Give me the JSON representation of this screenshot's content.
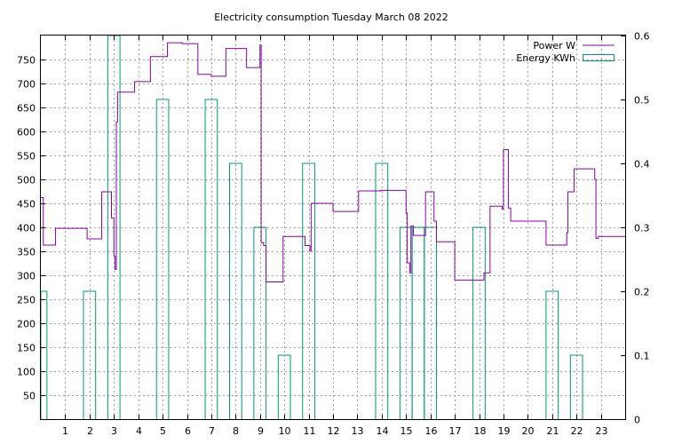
{
  "chart_data": {
    "type": "line",
    "title": "Electricity consumption Tuesday March 08 2022",
    "xlim": [
      0,
      24
    ],
    "ylim": [
      0,
      800
    ],
    "y2lim": [
      0,
      0.6
    ],
    "grid": true,
    "legend_placement": "top-right",
    "x_ticks": [
      1,
      2,
      3,
      4,
      5,
      6,
      7,
      8,
      9,
      10,
      11,
      12,
      13,
      14,
      15,
      16,
      17,
      18,
      19,
      20,
      21,
      22,
      23
    ],
    "y_ticks": [
      50,
      100,
      150,
      200,
      250,
      300,
      350,
      400,
      450,
      500,
      550,
      600,
      650,
      700,
      750
    ],
    "y2_ticks": [
      "0",
      "0.1",
      "0.2",
      "0.3",
      "0.4",
      "0.5",
      "0.6"
    ],
    "y2_tick_values": [
      0,
      0.1,
      0.2,
      0.3,
      0.4,
      0.5,
      0.6
    ],
    "series": [
      {
        "name": "Power W",
        "color": "#8b00a8",
        "axis": "y1",
        "style": "step",
        "points": [
          [
            0,
            462
          ],
          [
            0.1,
            462
          ],
          [
            0.1,
            363
          ],
          [
            0.6,
            363
          ],
          [
            0.6,
            398
          ],
          [
            1.9,
            398
          ],
          [
            1.9,
            376
          ],
          [
            2.5,
            376
          ],
          [
            2.5,
            474
          ],
          [
            2.9,
            474
          ],
          [
            2.9,
            420
          ],
          [
            3.0,
            420
          ],
          [
            3.0,
            340
          ],
          [
            3.05,
            340
          ],
          [
            3.05,
            312
          ],
          [
            3.1,
            312
          ],
          [
            3.1,
            620
          ],
          [
            3.15,
            620
          ],
          [
            3.15,
            682
          ],
          [
            3.85,
            682
          ],
          [
            3.85,
            704
          ],
          [
            4.5,
            704
          ],
          [
            4.5,
            756
          ],
          [
            5.2,
            756
          ],
          [
            5.2,
            785
          ],
          [
            5.8,
            785
          ],
          [
            5.8,
            783
          ],
          [
            6.45,
            783
          ],
          [
            6.45,
            719
          ],
          [
            7.0,
            719
          ],
          [
            7.0,
            715
          ],
          [
            7.6,
            715
          ],
          [
            7.6,
            773
          ],
          [
            8.45,
            773
          ],
          [
            8.45,
            733
          ],
          [
            9.0,
            733
          ],
          [
            9.0,
            780
          ],
          [
            9.05,
            780
          ],
          [
            9.05,
            368
          ],
          [
            9.15,
            368
          ],
          [
            9.15,
            362
          ],
          [
            9.25,
            362
          ],
          [
            9.25,
            286
          ],
          [
            9.95,
            286
          ],
          [
            9.95,
            381
          ],
          [
            10.85,
            381
          ],
          [
            10.85,
            362
          ],
          [
            11.05,
            362
          ],
          [
            11.05,
            350
          ],
          [
            11.1,
            350
          ],
          [
            11.1,
            450
          ],
          [
            12.0,
            450
          ],
          [
            12.0,
            433
          ],
          [
            13.05,
            433
          ],
          [
            13.05,
            476
          ],
          [
            13.95,
            476
          ],
          [
            13.95,
            477
          ],
          [
            15.0,
            477
          ],
          [
            15.0,
            430
          ],
          [
            15.05,
            430
          ],
          [
            15.05,
            326
          ],
          [
            15.15,
            326
          ],
          [
            15.15,
            305
          ],
          [
            15.2,
            305
          ],
          [
            15.2,
            403
          ],
          [
            15.3,
            403
          ],
          [
            15.3,
            383
          ],
          [
            15.8,
            383
          ],
          [
            15.8,
            474
          ],
          [
            16.15,
            474
          ],
          [
            16.15,
            413
          ],
          [
            16.25,
            413
          ],
          [
            16.25,
            370
          ],
          [
            17.0,
            370
          ],
          [
            17.0,
            290
          ],
          [
            18.2,
            290
          ],
          [
            18.2,
            305
          ],
          [
            18.45,
            305
          ],
          [
            18.45,
            444
          ],
          [
            18.95,
            444
          ],
          [
            18.95,
            438
          ],
          [
            19.0,
            438
          ],
          [
            19.0,
            562
          ],
          [
            19.2,
            562
          ],
          [
            19.2,
            440
          ],
          [
            19.3,
            440
          ],
          [
            19.3,
            413
          ],
          [
            20.75,
            413
          ],
          [
            20.75,
            363
          ],
          [
            21.6,
            363
          ],
          [
            21.6,
            389
          ],
          [
            21.65,
            389
          ],
          [
            21.65,
            474
          ],
          [
            21.9,
            474
          ],
          [
            21.9,
            522
          ],
          [
            22.75,
            522
          ],
          [
            22.75,
            500
          ],
          [
            22.8,
            500
          ],
          [
            22.8,
            377
          ],
          [
            22.9,
            377
          ],
          [
            22.9,
            381
          ],
          [
            24.0,
            381
          ]
        ]
      },
      {
        "name": "Energy KWh",
        "color": "#009b72",
        "axis": "y2",
        "style": "bars",
        "bar_width": 0.5,
        "x": [
          0,
          1,
          2,
          3,
          4,
          5,
          6,
          7,
          8,
          9,
          10,
          11,
          12,
          13,
          14,
          15,
          15.5,
          16,
          17,
          18,
          19,
          20,
          21,
          22,
          23
        ],
        "values": [
          0.2,
          0,
          0.2,
          0.6,
          0,
          0.5,
          0,
          0.5,
          0.4,
          0.3,
          0.1,
          0.4,
          0,
          0,
          0.4,
          0.3,
          0.3,
          0.3,
          0,
          0.3,
          0,
          0,
          0.2,
          0.1,
          0
        ]
      }
    ]
  }
}
